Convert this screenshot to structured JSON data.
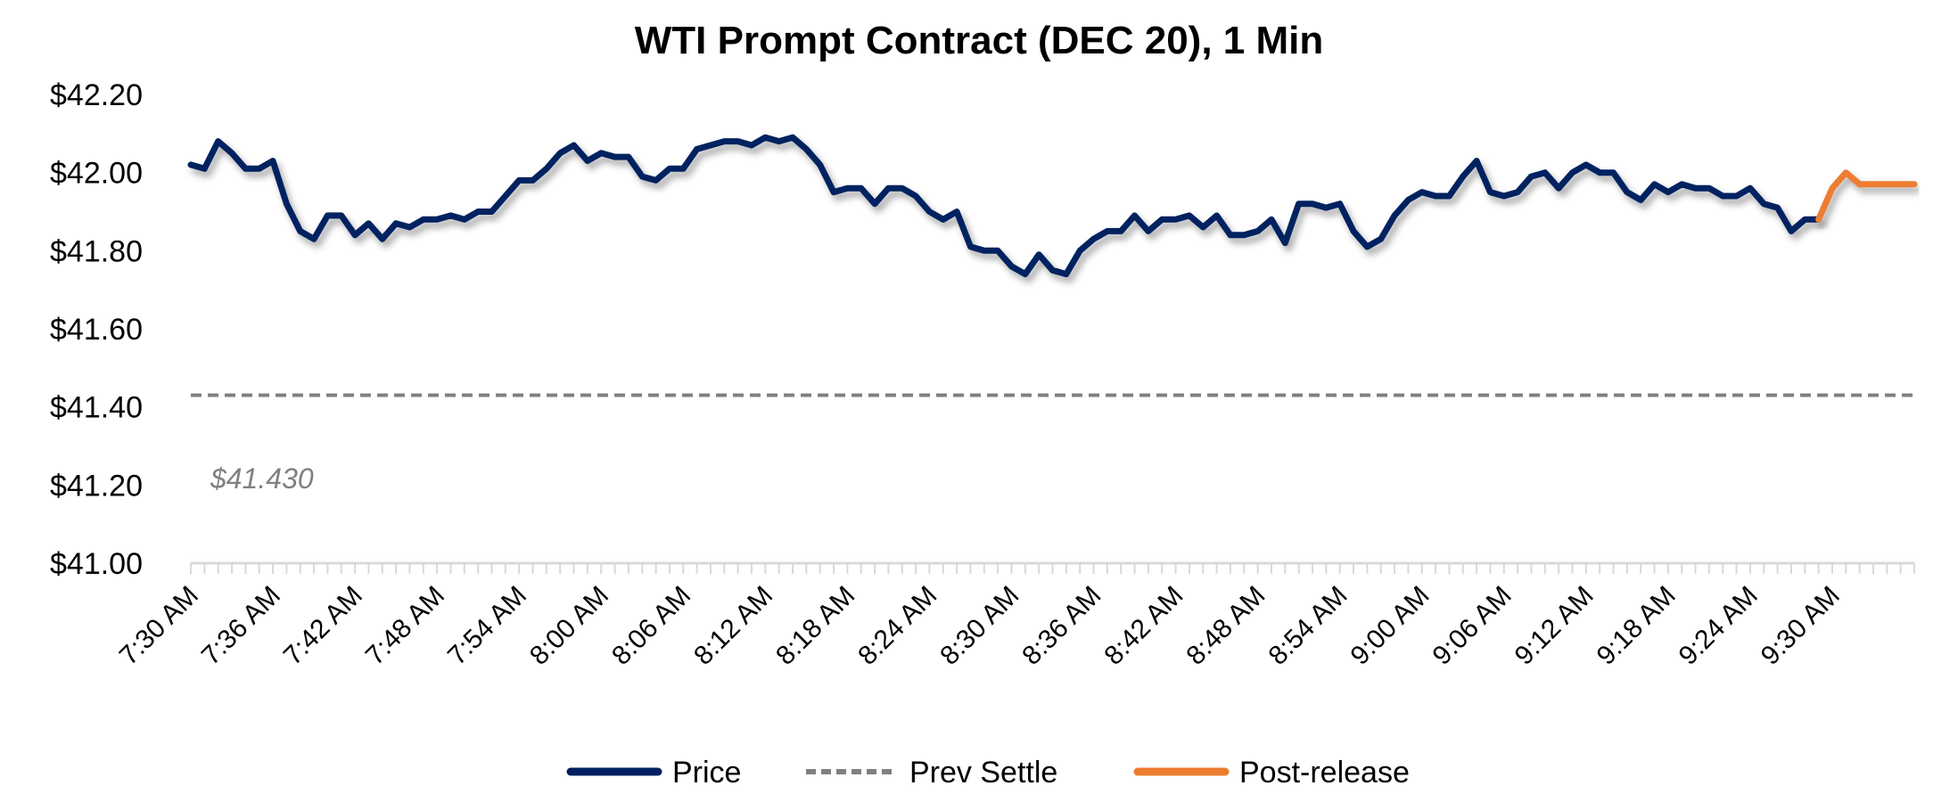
{
  "chart_data": {
    "type": "line",
    "title": "WTI Prompt Contract (DEC 20), 1 Min",
    "xlabel": "",
    "ylabel": "",
    "ylim": [
      41.0,
      42.2
    ],
    "y_ticks": [
      "$41.00",
      "$41.20",
      "$41.40",
      "$41.60",
      "$41.80",
      "$42.00",
      "$42.20"
    ],
    "y_tick_values": [
      41.0,
      41.2,
      41.4,
      41.6,
      41.8,
      42.0,
      42.2
    ],
    "x_start": "7:30 AM",
    "x_interval_minutes": 1,
    "x_tick_labels": [
      "7:30 AM",
      "7:36 AM",
      "7:42 AM",
      "7:48 AM",
      "7:54 AM",
      "8:00 AM",
      "8:06 AM",
      "8:12 AM",
      "8:18 AM",
      "8:24 AM",
      "8:30 AM",
      "8:36 AM",
      "8:42 AM",
      "8:48 AM",
      "8:54 AM",
      "9:00 AM",
      "9:06 AM",
      "9:12 AM",
      "9:18 AM",
      "9:24 AM",
      "9:30 AM"
    ],
    "grid": false,
    "legend_position": "bottom",
    "series": [
      {
        "name": "Price",
        "color": "#002060",
        "values": [
          42.02,
          42.01,
          42.08,
          42.05,
          42.01,
          42.01,
          42.03,
          41.92,
          41.85,
          41.83,
          41.89,
          41.89,
          41.84,
          41.87,
          41.83,
          41.87,
          41.86,
          41.88,
          41.88,
          41.89,
          41.88,
          41.9,
          41.9,
          41.94,
          41.98,
          41.98,
          42.01,
          42.05,
          42.07,
          42.03,
          42.05,
          42.04,
          42.04,
          41.99,
          41.98,
          42.01,
          42.01,
          42.06,
          42.07,
          42.08,
          42.08,
          42.07,
          42.09,
          42.08,
          42.09,
          42.06,
          42.02,
          41.95,
          41.96,
          41.96,
          41.92,
          41.96,
          41.96,
          41.94,
          41.9,
          41.88,
          41.9,
          41.81,
          41.8,
          41.8,
          41.76,
          41.74,
          41.79,
          41.75,
          41.74,
          41.8,
          41.83,
          41.85,
          41.85,
          41.89,
          41.85,
          41.88,
          41.88,
          41.89,
          41.86,
          41.89,
          41.84,
          41.84,
          41.85,
          41.88,
          41.82,
          41.92,
          41.92,
          41.91,
          41.92,
          41.85,
          41.81,
          41.83,
          41.89,
          41.93,
          41.95,
          41.94,
          41.94,
          41.99,
          42.03,
          41.95,
          41.94,
          41.95,
          41.99,
          42.0,
          41.96,
          42.0,
          42.02,
          42.0,
          42.0,
          41.95,
          41.93,
          41.97,
          41.95,
          41.97,
          41.96,
          41.96,
          41.94,
          41.94,
          41.96,
          41.92,
          41.91,
          41.85,
          41.88,
          41.88,
          null,
          null,
          null,
          null,
          null,
          null,
          null
        ]
      },
      {
        "name": "Prev Settle",
        "color": "#808080",
        "style": "dashed",
        "constant": 41.43,
        "label": "$41.430"
      },
      {
        "name": "Post-release",
        "color": "#ED7D31",
        "values": [
          null,
          null,
          null,
          null,
          null,
          null,
          null,
          null,
          null,
          null,
          null,
          null,
          null,
          null,
          null,
          null,
          null,
          null,
          null,
          null,
          null,
          null,
          null,
          null,
          null,
          null,
          null,
          null,
          null,
          null,
          null,
          null,
          null,
          null,
          null,
          null,
          null,
          null,
          null,
          null,
          null,
          null,
          null,
          null,
          null,
          null,
          null,
          null,
          null,
          null,
          null,
          null,
          null,
          null,
          null,
          null,
          null,
          null,
          null,
          null,
          null,
          null,
          null,
          null,
          null,
          null,
          null,
          null,
          null,
          null,
          null,
          null,
          null,
          null,
          null,
          null,
          null,
          null,
          null,
          null,
          null,
          null,
          null,
          null,
          null,
          null,
          null,
          null,
          null,
          null,
          null,
          null,
          null,
          null,
          null,
          null,
          null,
          null,
          null,
          null,
          null,
          null,
          null,
          null,
          null,
          null,
          null,
          null,
          null,
          null,
          null,
          null,
          null,
          null,
          null,
          null,
          null,
          null,
          null,
          41.88,
          41.96,
          42.0,
          41.97,
          41.97,
          41.97,
          41.97,
          41.97
        ]
      }
    ]
  }
}
